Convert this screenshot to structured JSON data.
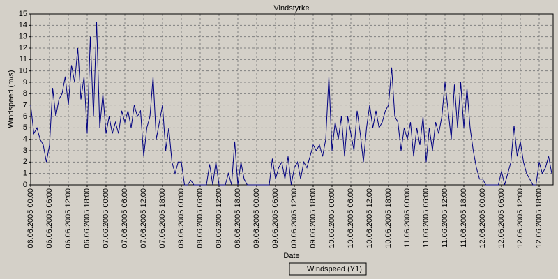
{
  "chart_data": {
    "type": "line",
    "title": "Vindstyrke",
    "xlabel": "Date",
    "ylabel": "Windspeed (m/s)",
    "categories": [
      "06.06.2005 00:00",
      null,
      null,
      null,
      null,
      null,
      "06.06.2005 06:00",
      null,
      null,
      null,
      null,
      null,
      "06.06.2005 12:00",
      null,
      null,
      null,
      null,
      null,
      "06.06.2005 18:00",
      null,
      null,
      null,
      null,
      null,
      "07.06.2005 00:00",
      null,
      null,
      null,
      null,
      null,
      "07.06.2005 06:00",
      null,
      null,
      null,
      null,
      null,
      "07.06.2005 12:00",
      null,
      null,
      null,
      null,
      null,
      "07.06.2005 18:00",
      null,
      null,
      null,
      null,
      null,
      "08.06.2005 00:00",
      null,
      null,
      null,
      null,
      null,
      "08.06.2005 06:00",
      null,
      null,
      null,
      null,
      null,
      "08.06.2005 12:00",
      null,
      null,
      null,
      null,
      null,
      "08.06.2005 18:00",
      null,
      null,
      null,
      null,
      null,
      "09.06.2005 00:00",
      null,
      null,
      null,
      null,
      null,
      "09.06.2005 06:00",
      null,
      null,
      null,
      null,
      null,
      "09.06.2005 12:00",
      null,
      null,
      null,
      null,
      null,
      "09.06.2005 18:00",
      null,
      null,
      null,
      null,
      null,
      "10.06.2005 00:00",
      null,
      null,
      null,
      null,
      null,
      "10.06.2005 06:00",
      null,
      null,
      null,
      null,
      null,
      "10.06.2005 12:00",
      null,
      null,
      null,
      null,
      null,
      "10.06.2005 18:00",
      null,
      null,
      null,
      null,
      null,
      "11.06.2005 00:00",
      null,
      null,
      null,
      null,
      null,
      "11.06.2005 06:00",
      null,
      null,
      null,
      null,
      null,
      "11.06.2005 12:00",
      null,
      null,
      null,
      null,
      null,
      "11.06.2005 18:00",
      null,
      null,
      null,
      null,
      null,
      "12.06.2005 00:00",
      null,
      null,
      null,
      null,
      null,
      "12.06.2005 06:00",
      null,
      null,
      null,
      null,
      null,
      "12.06.2005 12:00",
      null,
      null,
      null,
      null,
      null,
      "12.06.2005 18:00",
      null,
      null,
      null,
      null
    ],
    "series": [
      {
        "name": "Windspeed (Y1)",
        "color": "#000080",
        "values": [
          7,
          4.5,
          5,
          4,
          3.5,
          2,
          3.5,
          8.5,
          6,
          7.5,
          8,
          9.5,
          7,
          10.5,
          9,
          12,
          7.5,
          9.5,
          4.5,
          13,
          6,
          14.3,
          5,
          8,
          4.5,
          6,
          4.5,
          5.5,
          4.5,
          6.5,
          5.5,
          6.5,
          5,
          7,
          6,
          6.5,
          2.5,
          5,
          6,
          9.5,
          4,
          5.5,
          7,
          3,
          5,
          2,
          1,
          2,
          2,
          0,
          0,
          0.4,
          0,
          0,
          0,
          0,
          0,
          1.8,
          0,
          2,
          0,
          0,
          0,
          1,
          0,
          3.8,
          0,
          2,
          0.5,
          0,
          0,
          0,
          0,
          0,
          0,
          0,
          0,
          2.3,
          0.5,
          1.5,
          2,
          0.5,
          2.5,
          0,
          1.5,
          2,
          0.5,
          2,
          1.5,
          2.5,
          3.5,
          3,
          3.5,
          2.5,
          4,
          9.5,
          3,
          5.5,
          4,
          6,
          2.5,
          6,
          4.5,
          3,
          6.5,
          4.5,
          2,
          5,
          7,
          5,
          6.5,
          5,
          5.5,
          6.5,
          7,
          10.3,
          6,
          5.5,
          3,
          5,
          4,
          5.5,
          2.5,
          5,
          3.5,
          6,
          2,
          5,
          3,
          5.5,
          4.5,
          6,
          9,
          6.5,
          4,
          8.8,
          5,
          9,
          5,
          8.5,
          5,
          3,
          1.5,
          0.5,
          0.5,
          0,
          0,
          0,
          0,
          0,
          1.2,
          0,
          1,
          2,
          5.2,
          2.5,
          3.8,
          2,
          1,
          0.5,
          0,
          0,
          2,
          1,
          1.5,
          2.5,
          1
        ]
      }
    ],
    "ylim": [
      0,
      15
    ],
    "yticks": [
      0,
      1,
      2,
      3,
      4,
      5,
      6,
      7,
      8,
      9,
      10,
      11,
      12,
      13,
      14,
      15
    ],
    "grid": true,
    "legend": "bottom"
  }
}
